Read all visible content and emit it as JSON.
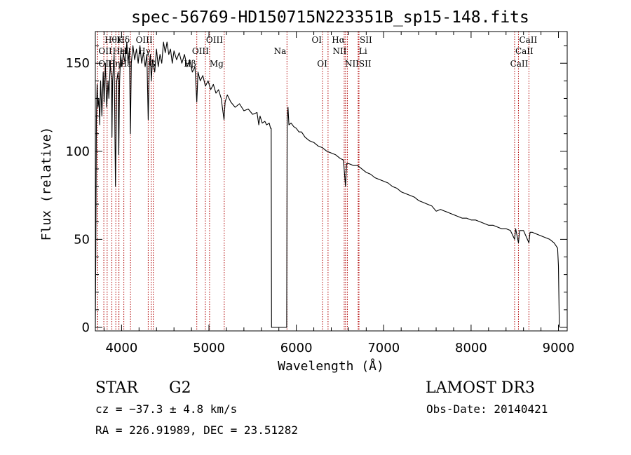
{
  "chart_data": {
    "type": "line",
    "title": "spec-56769-HD150715N223351B_sp15-148.fits",
    "xlabel": "Wavelength (Å)",
    "ylabel": "Flux (relative)",
    "xlim": [
      3700,
      9100
    ],
    "ylim": [
      -2,
      168
    ],
    "xticks": [
      4000,
      5000,
      6000,
      7000,
      8000,
      9000
    ],
    "yticks": [
      0,
      50,
      100,
      150
    ],
    "series": [
      {
        "name": "flux",
        "points": [
          [
            3700,
            0
          ],
          [
            3705,
            40
          ],
          [
            3712,
            118
          ],
          [
            3720,
            138
          ],
          [
            3730,
            125
          ],
          [
            3740,
            130
          ],
          [
            3750,
            115
          ],
          [
            3760,
            140
          ],
          [
            3775,
            120
          ],
          [
            3790,
            145
          ],
          [
            3800,
            128
          ],
          [
            3815,
            150
          ],
          [
            3830,
            125
          ],
          [
            3845,
            140
          ],
          [
            3855,
            130
          ],
          [
            3870,
            150
          ],
          [
            3885,
            140
          ],
          [
            3890,
            108
          ],
          [
            3897,
            140
          ],
          [
            3915,
            155
          ],
          [
            3930,
            80
          ],
          [
            3945,
            140
          ],
          [
            3960,
            145
          ],
          [
            3968,
            98
          ],
          [
            3978,
            140
          ],
          [
            3990,
            155
          ],
          [
            4005,
            148
          ],
          [
            4020,
            156
          ],
          [
            4040,
            150
          ],
          [
            4060,
            162
          ],
          [
            4075,
            150
          ],
          [
            4090,
            158
          ],
          [
            4101,
            110
          ],
          [
            4112,
            150
          ],
          [
            4130,
            160
          ],
          [
            4150,
            152
          ],
          [
            4170,
            158
          ],
          [
            4190,
            150
          ],
          [
            4210,
            160
          ],
          [
            4230,
            150
          ],
          [
            4250,
            156
          ],
          [
            4270,
            148
          ],
          [
            4290,
            155
          ],
          [
            4305,
            118
          ],
          [
            4318,
            150
          ],
          [
            4330,
            155
          ],
          [
            4340,
            140
          ],
          [
            4355,
            152
          ],
          [
            4380,
            145
          ],
          [
            4400,
            158
          ],
          [
            4420,
            148
          ],
          [
            4440,
            155
          ],
          [
            4460,
            150
          ],
          [
            4480,
            162
          ],
          [
            4500,
            156
          ],
          [
            4520,
            162
          ],
          [
            4540,
            155
          ],
          [
            4560,
            158
          ],
          [
            4580,
            150
          ],
          [
            4600,
            157
          ],
          [
            4630,
            152
          ],
          [
            4660,
            156
          ],
          [
            4690,
            150
          ],
          [
            4720,
            155
          ],
          [
            4750,
            148
          ],
          [
            4780,
            152
          ],
          [
            4810,
            145
          ],
          [
            4840,
            148
          ],
          [
            4861,
            128
          ],
          [
            4875,
            145
          ],
          [
            4900,
            140
          ],
          [
            4930,
            143
          ],
          [
            4960,
            137
          ],
          [
            4990,
            140
          ],
          [
            5020,
            135
          ],
          [
            5050,
            138
          ],
          [
            5080,
            133
          ],
          [
            5110,
            135
          ],
          [
            5140,
            130
          ],
          [
            5172,
            118
          ],
          [
            5185,
            128
          ],
          [
            5210,
            132
          ],
          [
            5250,
            128
          ],
          [
            5300,
            125
          ],
          [
            5350,
            127
          ],
          [
            5400,
            123
          ],
          [
            5450,
            124
          ],
          [
            5500,
            121
          ],
          [
            5550,
            122
          ],
          [
            5570,
            115
          ],
          [
            5585,
            120
          ],
          [
            5610,
            116
          ],
          [
            5640,
            117
          ],
          [
            5660,
            115
          ],
          [
            5690,
            116
          ],
          [
            5705,
            113
          ],
          [
            5712,
            113
          ],
          [
            5716,
            0
          ],
          [
            5890,
            0
          ],
          [
            5895,
            118
          ],
          [
            5905,
            125
          ],
          [
            5915,
            115
          ],
          [
            5940,
            116
          ],
          [
            5970,
            114
          ],
          [
            6000,
            113
          ],
          [
            6030,
            111
          ],
          [
            6060,
            111
          ],
          [
            6100,
            108
          ],
          [
            6150,
            106
          ],
          [
            6200,
            105
          ],
          [
            6250,
            103
          ],
          [
            6300,
            102
          ],
          [
            6350,
            100
          ],
          [
            6400,
            99
          ],
          [
            6450,
            98
          ],
          [
            6500,
            96
          ],
          [
            6540,
            95
          ],
          [
            6563,
            80
          ],
          [
            6575,
            93
          ],
          [
            6600,
            93
          ],
          [
            6650,
            92
          ],
          [
            6700,
            92
          ],
          [
            6750,
            90
          ],
          [
            6800,
            88
          ],
          [
            6850,
            87
          ],
          [
            6900,
            85
          ],
          [
            6950,
            84
          ],
          [
            7000,
            83
          ],
          [
            7050,
            82
          ],
          [
            7100,
            80
          ],
          [
            7150,
            79
          ],
          [
            7200,
            77
          ],
          [
            7250,
            76
          ],
          [
            7300,
            75
          ],
          [
            7350,
            74
          ],
          [
            7400,
            72
          ],
          [
            7450,
            71
          ],
          [
            7500,
            70
          ],
          [
            7550,
            69
          ],
          [
            7600,
            66
          ],
          [
            7650,
            67
          ],
          [
            7700,
            66
          ],
          [
            7750,
            65
          ],
          [
            7800,
            64
          ],
          [
            7850,
            63
          ],
          [
            7900,
            62
          ],
          [
            7950,
            62
          ],
          [
            8000,
            61
          ],
          [
            8050,
            61
          ],
          [
            8100,
            60
          ],
          [
            8150,
            59
          ],
          [
            8200,
            58
          ],
          [
            8250,
            58
          ],
          [
            8300,
            57
          ],
          [
            8350,
            56
          ],
          [
            8400,
            56
          ],
          [
            8450,
            55
          ],
          [
            8498,
            50
          ],
          [
            8510,
            56
          ],
          [
            8542,
            48
          ],
          [
            8555,
            55
          ],
          [
            8600,
            55
          ],
          [
            8662,
            48
          ],
          [
            8675,
            54
          ],
          [
            8700,
            54
          ],
          [
            8750,
            53
          ],
          [
            8800,
            52
          ],
          [
            8850,
            51
          ],
          [
            8900,
            50
          ],
          [
            8950,
            48
          ],
          [
            8990,
            45
          ],
          [
            9000,
            35
          ],
          [
            9010,
            0
          ]
        ]
      }
    ],
    "line_markers": [
      {
        "label": "Hθ",
        "wave": 3797,
        "row": 1,
        "side": "right"
      },
      {
        "label": "K",
        "wave": 3934,
        "row": 1,
        "side": "right"
      },
      {
        "label": "Hδ",
        "wave": 4102,
        "row": 1,
        "side": "left"
      },
      {
        "label": "OIII",
        "wave": 4363,
        "row": 1,
        "side": "left"
      },
      {
        "label": "OIII",
        "wave": 4959,
        "row": 1,
        "side": "right"
      },
      {
        "label": "OI",
        "wave": 6300,
        "row": 1,
        "side": "left"
      },
      {
        "label": "Hα",
        "wave": 6563,
        "row": 1,
        "side": "left"
      },
      {
        "label": "SII",
        "wave": 6717,
        "row": 1,
        "side": "right"
      },
      {
        "label": "CaII",
        "wave": 8542,
        "row": 1,
        "side": "right"
      },
      {
        "label": "OII",
        "wave": 3727,
        "row": 2,
        "side": "right"
      },
      {
        "label": "HeI",
        "wave": 3889,
        "row": 2,
        "side": "right"
      },
      {
        "label": "H",
        "wave": 3969,
        "row": 2,
        "side": "right"
      },
      {
        "label": "II",
        "wave": 4026,
        "row": 2,
        "side": "right"
      },
      {
        "label": "Hγ",
        "wave": 4340,
        "row": 2,
        "side": "left"
      },
      {
        "label": "OIII",
        "wave": 5007,
        "row": 2,
        "side": "left"
      },
      {
        "label": "Na",
        "wave": 5893,
        "row": 2,
        "side": "left"
      },
      {
        "label": "NII",
        "wave": 6584,
        "row": 2,
        "side": "left"
      },
      {
        "label": "Li",
        "wave": 6708,
        "row": 2,
        "side": "right"
      },
      {
        "label": "CaII",
        "wave": 8498,
        "row": 2,
        "side": "right"
      },
      {
        "label": "OIII",
        "wave": 3727,
        "row": 3,
        "side": "right"
      },
      {
        "label": "Hη",
        "wave": 3835,
        "row": 3,
        "side": "right"
      },
      {
        "label": "Hε",
        "wave": 3970,
        "row": 3,
        "side": "right"
      },
      {
        "label": "G",
        "wave": 4305,
        "row": 3,
        "side": "right"
      },
      {
        "label": "Hβ",
        "wave": 4861,
        "row": 3,
        "side": "left"
      },
      {
        "label": "Mg",
        "wave": 5175,
        "row": 3,
        "side": "left"
      },
      {
        "label": "OI",
        "wave": 6363,
        "row": 3,
        "side": "left"
      },
      {
        "label": "NIISII",
        "wave": 6548,
        "row": 3,
        "side": "right"
      },
      {
        "label": "CaII",
        "wave": 8662,
        "row": 3,
        "side": "left"
      }
    ],
    "marker_color": "#b00000"
  },
  "info": {
    "object_class": "STAR",
    "subclass": "G2",
    "survey": "LAMOST DR3",
    "cz": "cz = −37.3 ± 4.8 km/s",
    "obs_date": "Obs-Date: 20140421",
    "coords": "RA = 226.91989, DEC =  23.51282"
  }
}
